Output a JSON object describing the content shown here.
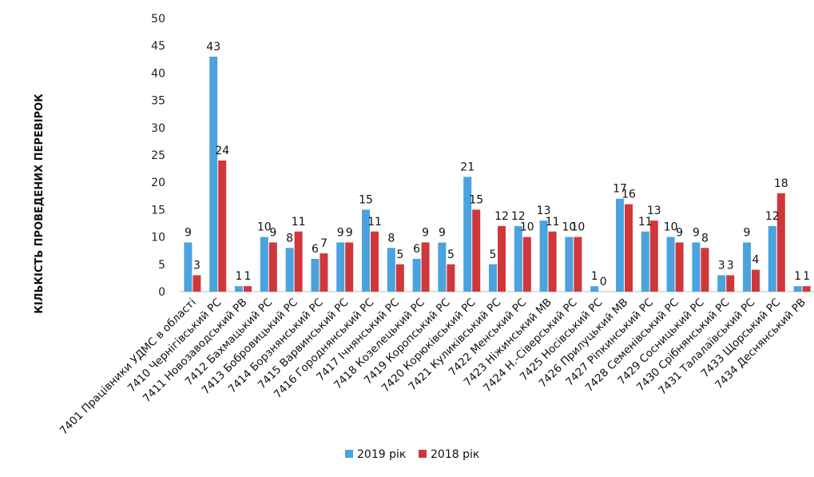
{
  "chart_data": {
    "type": "bar",
    "ylabel": "КІЛЬКІСТЬ ПРОВЕДЕНИХ ПЕРЕВІРОК",
    "ylim": [
      0,
      50
    ],
    "yticks": [
      0,
      5,
      10,
      15,
      20,
      25,
      30,
      35,
      40,
      45,
      50
    ],
    "grid": false,
    "legend_position": "bottom",
    "categories": [
      "7401 Працівники УДМС в області",
      "7410 Чернігівський РС",
      "7411 Новозаводський РВ",
      "7412 Бахмацький РС",
      "7413 Бобровицький РС",
      "7414 Борзнянський РС",
      "7415 Варвинський РС",
      "7416 Городнянський РС",
      "7417 Ічнянський РС",
      "7418 Козелецький РС",
      "7419 Коропський РС",
      "7420 Корюківський РС",
      "7421 Куликівський РС",
      "7422 Менський РС",
      "7423 Ніжинський МВ",
      "7424 Н.-Сіверський РС",
      "7425 Носівський РС",
      "7426 Прилуцький МВ",
      "7427 Ріпкинський РС",
      "7428 Семенівський РС",
      "7429 Сосницький РС",
      "7430 Срібнянський РС",
      "7431 Талалаївський РС",
      "7433 Щорський РС",
      "7434 Деснянський РВ"
    ],
    "series": [
      {
        "name": "2019 рік",
        "color": "#4aa3df",
        "values": [
          9,
          43,
          1,
          10,
          8,
          6,
          9,
          15,
          8,
          6,
          9,
          21,
          5,
          12,
          13,
          10,
          1,
          17,
          11,
          10,
          9,
          3,
          9,
          12,
          1
        ]
      },
      {
        "name": "2018 рік",
        "color": "#d0373a",
        "values": [
          3,
          24,
          1,
          9,
          11,
          7,
          9,
          11,
          5,
          9,
          5,
          15,
          12,
          10,
          11,
          10,
          0,
          16,
          13,
          9,
          8,
          3,
          4,
          18,
          1
        ]
      }
    ]
  }
}
